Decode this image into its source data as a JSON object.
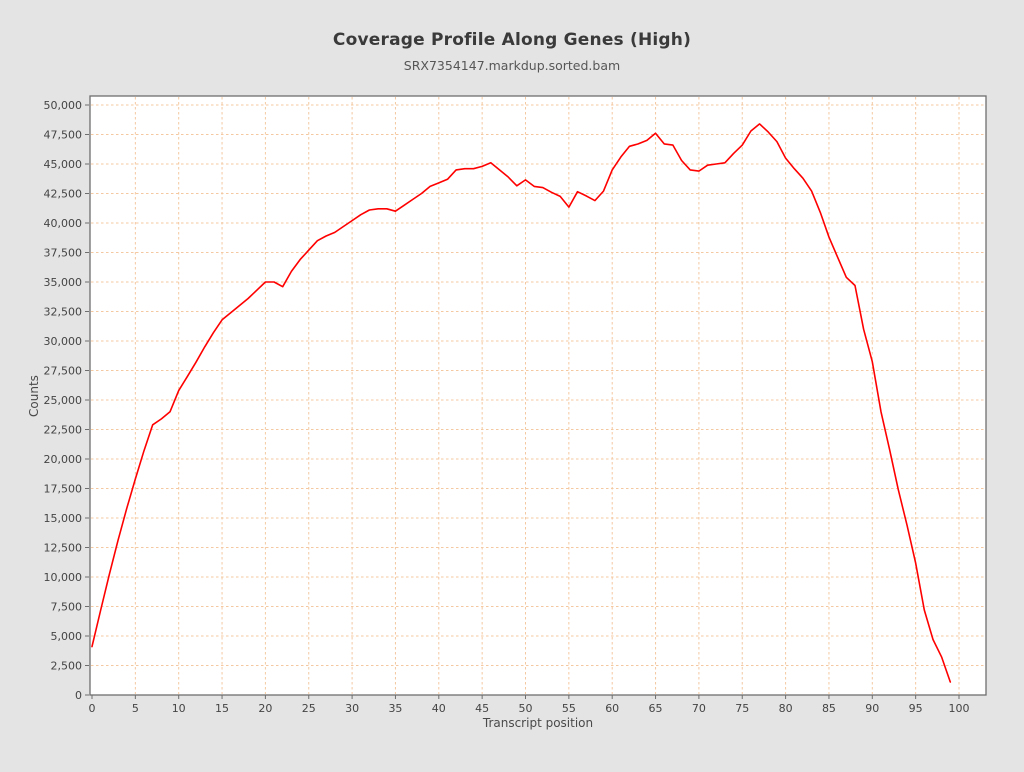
{
  "header": {
    "title": "Coverage Profile Along Genes (High)",
    "subtitle": "SRX7354147.markdup.sorted.bam"
  },
  "chart_data": {
    "type": "line",
    "title": "Coverage Profile Along Genes (High)",
    "subtitle": "SRX7354147.markdup.sorted.bam",
    "xlabel": "Transcript position",
    "ylabel": "Counts",
    "series_name": "SRX7354147.markdup.sorted.bam",
    "x_start": 0,
    "x_step": 1,
    "values": [
      4100,
      7200,
      10200,
      13100,
      15800,
      18300,
      20700,
      22900,
      23400,
      24000,
      25800,
      27000,
      28200,
      29500,
      30700,
      31800,
      32400,
      33000,
      33600,
      34300,
      35000,
      35000,
      34600,
      35900,
      36900,
      37700,
      38500,
      38900,
      39200,
      39700,
      40200,
      40700,
      41100,
      41200,
      41200,
      41000,
      41500,
      42000,
      42500,
      43100,
      43400,
      43700,
      44500,
      44600,
      44600,
      44800,
      45100,
      44500,
      43900,
      43150,
      43650,
      43100,
      43000,
      42600,
      42250,
      41350,
      42650,
      42300,
      41900,
      42700,
      44500,
      45600,
      46500,
      46700,
      47000,
      47600,
      46700,
      46600,
      45300,
      44500,
      44400,
      44900,
      45000,
      45100,
      45900,
      46600,
      47800,
      48400,
      47700,
      46900,
      45500,
      44600,
      43800,
      42700,
      40900,
      38800,
      37100,
      35400,
      34700,
      31000,
      28250,
      24000,
      20800,
      17400,
      14400,
      11200,
      7200,
      4700,
      3200,
      1100
    ],
    "x_ticks": [
      0,
      5,
      10,
      15,
      20,
      25,
      30,
      35,
      40,
      45,
      50,
      55,
      60,
      65,
      70,
      75,
      80,
      85,
      90,
      95,
      100
    ],
    "x_tick_labels": [
      "0",
      "5",
      "10",
      "15",
      "20",
      "25",
      "30",
      "35",
      "40",
      "45",
      "50",
      "55",
      "60",
      "65",
      "70",
      "75",
      "80",
      "85",
      "90",
      "95",
      "100"
    ],
    "y_ticks": [
      0,
      2500,
      5000,
      7500,
      10000,
      12500,
      15000,
      17500,
      20000,
      22500,
      25000,
      27500,
      30000,
      32500,
      35000,
      37500,
      40000,
      42500,
      45000,
      47500,
      50000
    ],
    "y_tick_labels": [
      "0",
      "2,500",
      "5,000",
      "7,500",
      "10,000",
      "12,500",
      "15,000",
      "17,500",
      "20,000",
      "22,500",
      "25,000",
      "27,500",
      "30,000",
      "32,500",
      "35,000",
      "37,500",
      "40,000",
      "42,500",
      "45,000",
      "47,500",
      "50,000"
    ],
    "ylim": [
      0,
      50760
    ],
    "xlim": [
      -0.2,
      103.1
    ],
    "grid": true,
    "legend": "none",
    "colors": {
      "line": "#ff0000",
      "grid": "#f4c8a0",
      "plot_bg": "#ffffff",
      "page_bg": "#e4e4e4",
      "border": "#6e6e6e",
      "tick_text": "#444444",
      "title_text": "#3a3a3a",
      "subtitle_text": "#575757"
    }
  }
}
